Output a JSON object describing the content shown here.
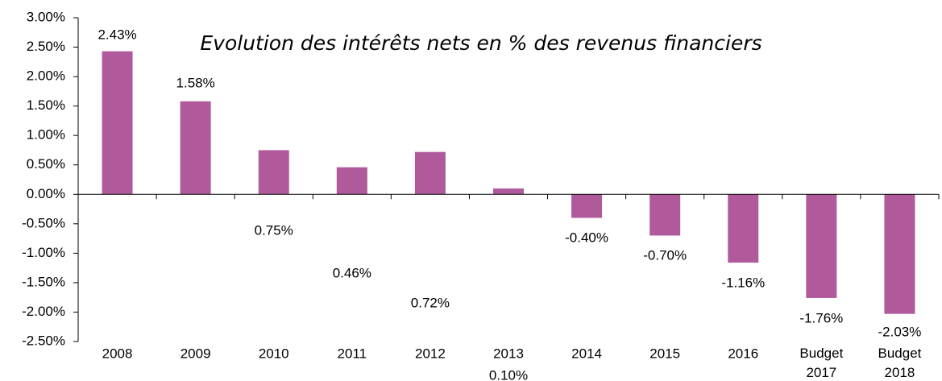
{
  "chart_data": {
    "type": "bar",
    "title": "Evolution des intérêts nets en % des revenus financiers",
    "categories": [
      "2008",
      "2009",
      "2010",
      "2011",
      "2012",
      "2013",
      "2014",
      "2015",
      "2016",
      "Budget 2017",
      "Budget 2018"
    ],
    "values": [
      2.43,
      1.58,
      0.75,
      0.46,
      0.72,
      0.1,
      -0.4,
      -0.7,
      -1.16,
      -1.76,
      -2.03
    ],
    "value_labels": [
      "2.43%",
      "1.58%",
      "0.75%",
      "0.46%",
      "0.72%",
      "0.10%",
      "-0.40%",
      "-0.70%",
      "-1.16%",
      "-1.76%",
      "-2.03%"
    ],
    "color": "#b05a9b",
    "ylim": [
      -2.5,
      3
    ],
    "yticks": [
      {
        "value": 3,
        "label": "3.00%"
      },
      {
        "value": 2.5,
        "label": "2.50%"
      },
      {
        "value": 2,
        "label": "2.00%"
      },
      {
        "value": 1.5,
        "label": "1.50%"
      },
      {
        "value": 1,
        "label": "1.00%"
      },
      {
        "value": 0.5,
        "label": "0.50%"
      },
      {
        "value": 0,
        "label": "0.00%"
      },
      {
        "value": -0.5,
        "label": "-0.50%"
      },
      {
        "value": -1,
        "label": "-1.00%"
      },
      {
        "value": -1.5,
        "label": "-1.50%"
      },
      {
        "value": -2,
        "label": "-2.00%"
      },
      {
        "value": -2.5,
        "label": "-2.50%"
      }
    ],
    "grid": false
  }
}
